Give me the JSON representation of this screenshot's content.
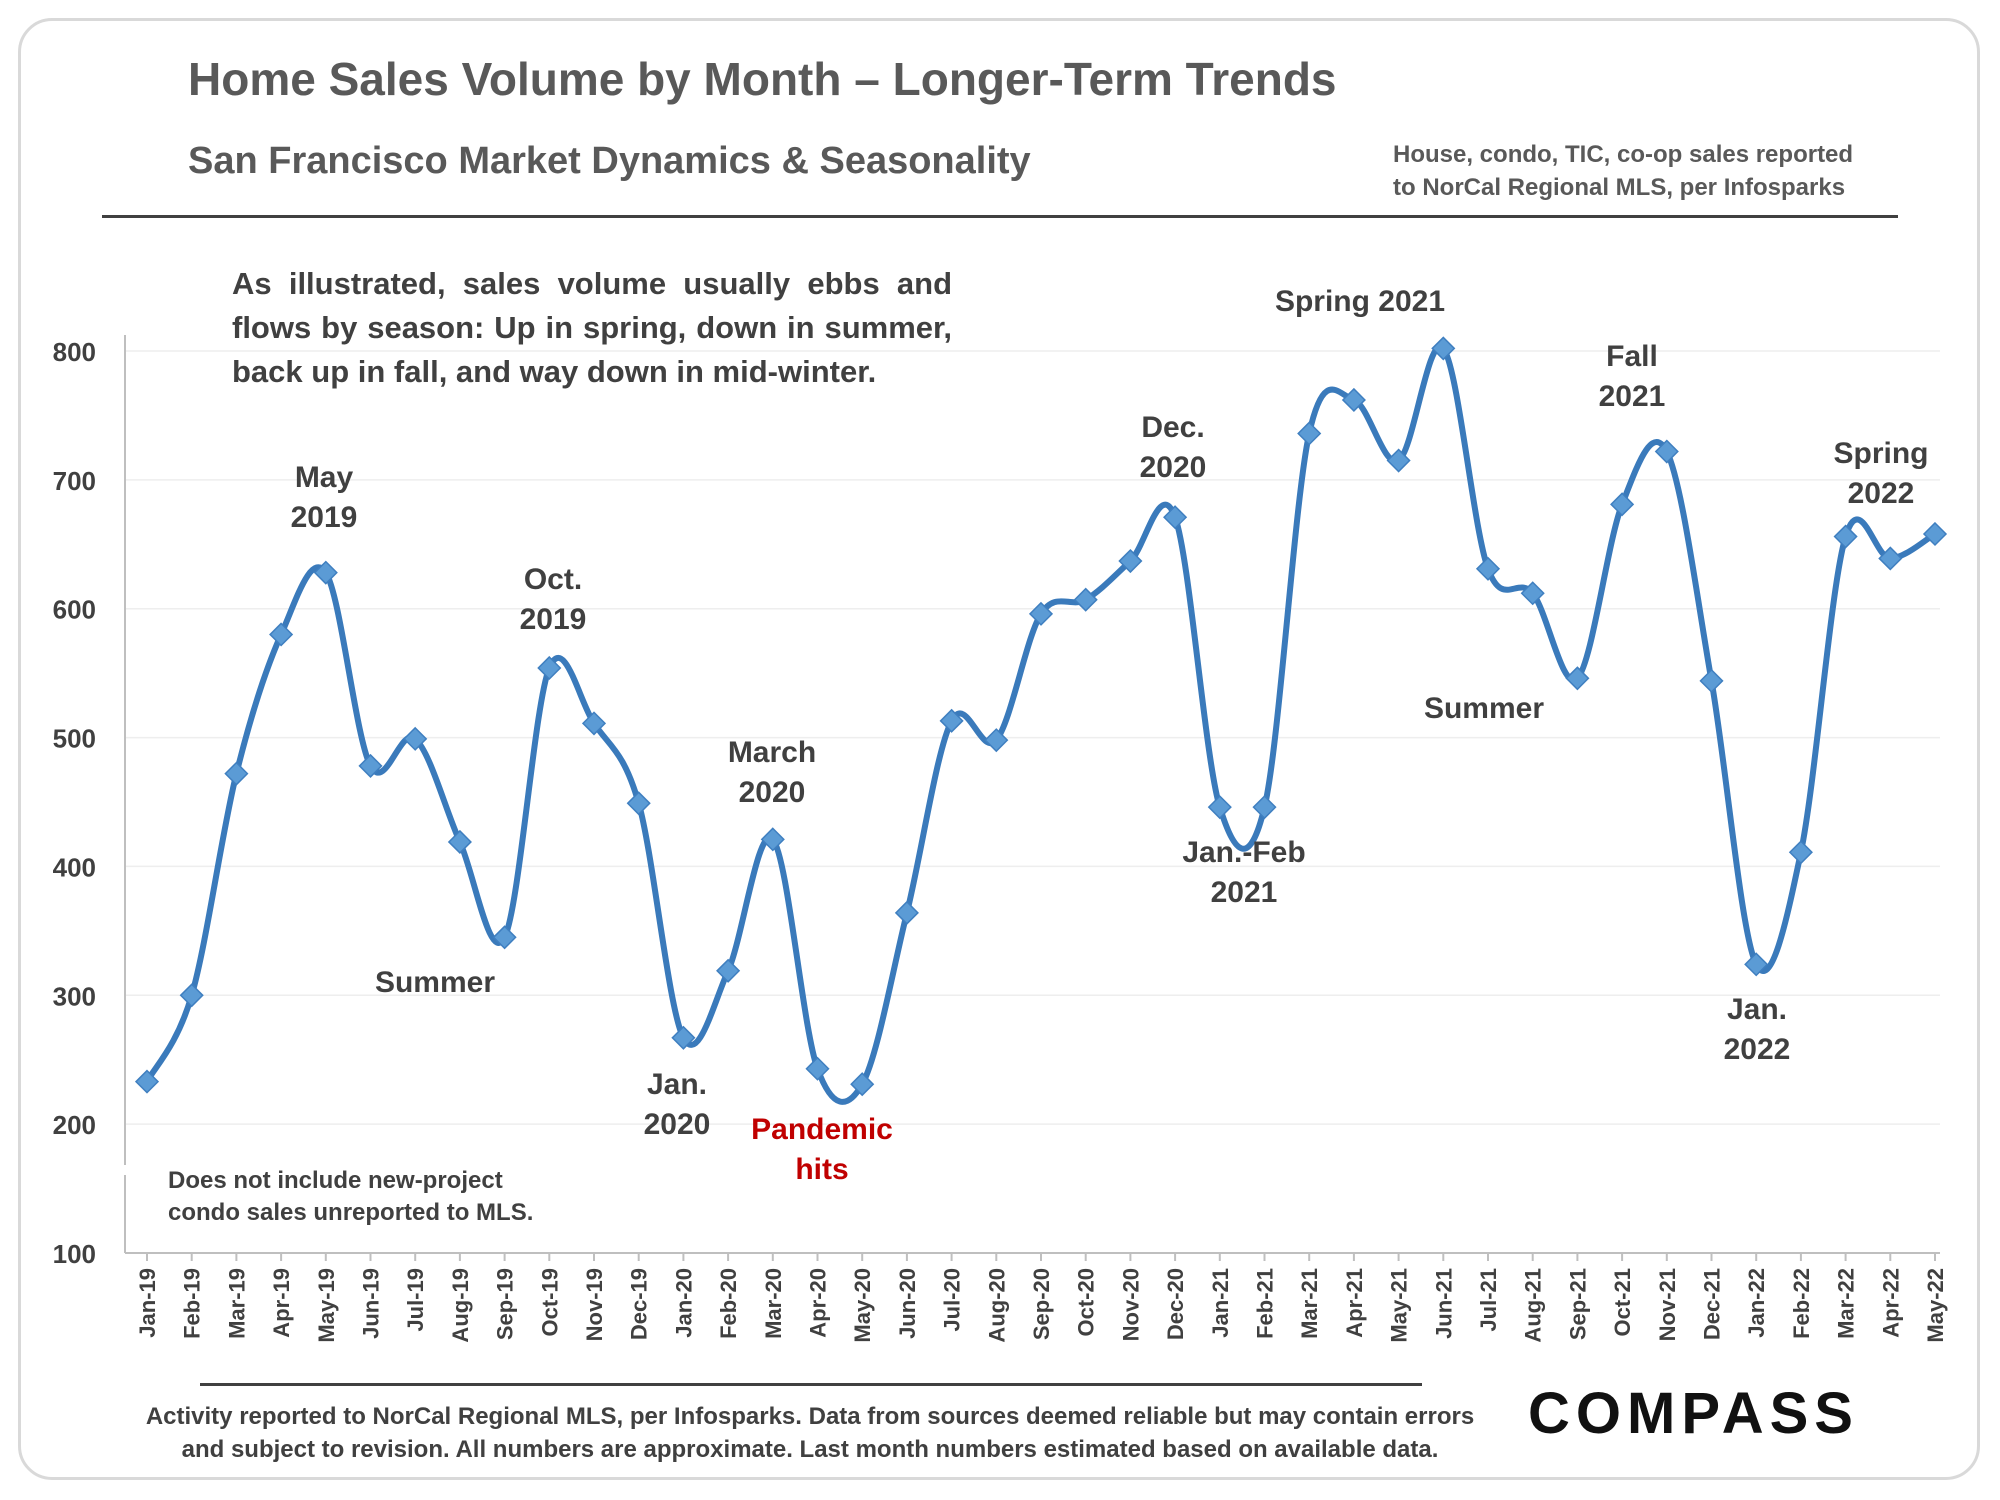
{
  "page": {
    "title": "Home Sales Volume by Month – Longer-Term Trends",
    "subtitle": "San Francisco Market Dynamics & Seasonality",
    "source_note": [
      "House, condo, TIC, co-op sales reported",
      "to NorCal Regional MLS, per Infosparks"
    ],
    "intro": "As illustrated, sales volume usually ebbs and flows by season: Up in spring, down in summer, back up in fall, and way down in mid-winter.",
    "exclusion_note": [
      "Does not include new-project",
      "condo sales unreported to MLS."
    ],
    "footer": [
      "Activity reported to NorCal Regional MLS, per Infosparks. Data from sources deemed reliable but may contain errors",
      "and subject to revision. All numbers are approximate. Last month numbers estimated based on available data."
    ],
    "logo": "COMPASS"
  },
  "colors": {
    "line": "#3a7abb",
    "marker": "#5b9bd5",
    "text": "#404040",
    "highlight": "#c00000",
    "grid": "#eeeeee"
  },
  "chart_data": {
    "type": "line",
    "title": "Home Sales Volume by Month – Longer-Term Trends",
    "subtitle": "San Francisco Market Dynamics & Seasonality",
    "xlabel": "",
    "ylabel": "",
    "ylim": [
      100,
      800
    ],
    "yticks": [
      100,
      200,
      300,
      400,
      500,
      600,
      700,
      800
    ],
    "grid": true,
    "legend": "none",
    "categories": [
      "Jan-19",
      "Feb-19",
      "Mar-19",
      "Apr-19",
      "May-19",
      "Jun-19",
      "Jul-19",
      "Aug-19",
      "Sep-19",
      "Oct-19",
      "Nov-19",
      "Dec-19",
      "Jan-20",
      "Feb-20",
      "Mar-20",
      "Apr-20",
      "May-20",
      "Jun-20",
      "Jul-20",
      "Aug-20",
      "Sep-20",
      "Oct-20",
      "Nov-20",
      "Dec-20",
      "Jan-21",
      "Feb-21",
      "Mar-21",
      "Apr-21",
      "May-21",
      "Jun-21",
      "Jul-21",
      "Aug-21",
      "Sep-21",
      "Oct-21",
      "Nov-21",
      "Dec-21",
      "Jan-22",
      "Feb-22",
      "Mar-22",
      "Apr-22",
      "May-22"
    ],
    "series": [
      {
        "values": [
          233,
          300,
          472,
          580,
          628,
          478,
          499,
          419,
          345,
          554,
          511,
          449,
          267,
          319,
          421,
          243,
          231,
          364,
          513,
          498,
          596,
          607,
          637,
          671,
          446,
          446,
          736,
          762,
          715,
          802,
          631,
          612,
          546,
          681,
          722,
          544,
          324,
          411,
          656,
          639,
          658
        ]
      }
    ],
    "annotations": [
      {
        "lines": [
          "May",
          "2019"
        ],
        "at": "May-19",
        "value": 628,
        "color": "text"
      },
      {
        "lines": [
          "Summer"
        ],
        "at": "Aug-19",
        "value": 345,
        "color": "text"
      },
      {
        "lines": [
          "Oct.",
          "2019"
        ],
        "at": "Oct-19",
        "value": 554,
        "color": "text"
      },
      {
        "lines": [
          "Jan.",
          "2020"
        ],
        "at": "Jan-20",
        "value": 267,
        "color": "text"
      },
      {
        "lines": [
          "March",
          "2020"
        ],
        "at": "Mar-20",
        "value": 421,
        "color": "text"
      },
      {
        "lines": [
          "Pandemic",
          "hits"
        ],
        "at": "Apr-20",
        "value": 231,
        "color": "highlight"
      },
      {
        "lines": [
          "Dec.",
          "2020"
        ],
        "at": "Dec-20",
        "value": 671,
        "color": "text"
      },
      {
        "lines": [
          "Jan.-Feb",
          "2021"
        ],
        "at": "Jan-21",
        "value": 446,
        "color": "text"
      },
      {
        "lines": [
          "Spring 2021"
        ],
        "at": "Jun-21",
        "value": 802,
        "color": "text"
      },
      {
        "lines": [
          "Summer"
        ],
        "at": "Aug-21",
        "value": 546,
        "color": "text"
      },
      {
        "lines": [
          "Fall",
          "2021"
        ],
        "at": "Nov-21",
        "value": 722,
        "color": "text"
      },
      {
        "lines": [
          "Jan.",
          "2022"
        ],
        "at": "Jan-22",
        "value": 324,
        "color": "text"
      },
      {
        "lines": [
          "Spring",
          "2022"
        ],
        "at": "Apr-22",
        "value": 656,
        "color": "text"
      }
    ]
  }
}
